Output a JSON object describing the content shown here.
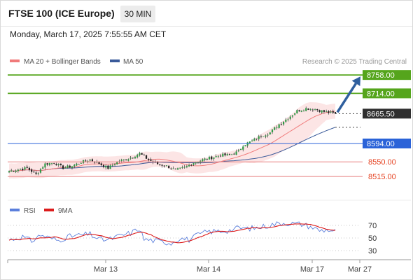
{
  "header": {
    "instrument": "FTSE 100 (ICE Europe)",
    "interval": "30 MIN",
    "datetime": "Monday, March 17, 2025 7:55:55 AM CET"
  },
  "colors": {
    "up": "#2e9c46",
    "down": "#222222",
    "ma20": "#f07a7a",
    "bollinger_fill": "#fbdcdc",
    "ma50": "#3a5a9a",
    "resistance": "#55a51c",
    "support_blue": "#2b63d8",
    "support_red": "#e88080",
    "current": "#2f2f2f",
    "arrow": "#2f5f9e",
    "rsi": "#5b7fdc",
    "rsi_ma": "#dc1c1c"
  },
  "chart_data": [
    {
      "type": "candlestick",
      "legend": [
        "MA 20 + Bollinger Bands",
        "MA 50"
      ],
      "credit": "Research © 2025 Trading Central",
      "x_ticks": [
        "Mar 13",
        "Mar 14",
        "Mar 17",
        "Mar 27"
      ],
      "ylim": [
        8480,
        8775
      ],
      "levels": [
        {
          "label": "8758.00",
          "value": 8758,
          "kind": "resistance"
        },
        {
          "label": "8714.00",
          "value": 8714,
          "kind": "resistance"
        },
        {
          "label": "8665.50",
          "value": 8665.5,
          "kind": "current"
        },
        {
          "label": "8594.00",
          "value": 8594,
          "kind": "support_blue"
        },
        {
          "label": "8550.00",
          "value": 8550,
          "kind": "support_red"
        },
        {
          "label": "8515.00",
          "value": 8515,
          "kind": "support_red"
        }
      ],
      "close_waypoints": [
        [
          0,
          8528
        ],
        [
          8,
          8535
        ],
        [
          12,
          8520
        ],
        [
          16,
          8545
        ],
        [
          20,
          8548
        ],
        [
          24,
          8536
        ],
        [
          28,
          8540
        ],
        [
          32,
          8549
        ],
        [
          36,
          8555
        ],
        [
          40,
          8546
        ],
        [
          44,
          8535
        ],
        [
          48,
          8550
        ],
        [
          54,
          8560
        ],
        [
          58,
          8570
        ],
        [
          62,
          8555
        ],
        [
          66,
          8545
        ],
        [
          70,
          8540
        ],
        [
          74,
          8530
        ],
        [
          78,
          8536
        ],
        [
          82,
          8548
        ],
        [
          86,
          8555
        ],
        [
          90,
          8560
        ],
        [
          94,
          8566
        ],
        [
          98,
          8566
        ],
        [
          102,
          8575
        ],
        [
          104,
          8590
        ],
        [
          108,
          8600
        ],
        [
          112,
          8612
        ],
        [
          116,
          8620
        ],
        [
          120,
          8640
        ],
        [
          124,
          8655
        ],
        [
          128,
          8672
        ],
        [
          132,
          8678
        ],
        [
          136,
          8676
        ],
        [
          140,
          8670
        ],
        [
          145,
          8665.5
        ]
      ]
    },
    {
      "type": "line",
      "legend": [
        "RSI",
        "9MA"
      ],
      "ylim": [
        20,
        80
      ],
      "y_ticks": [
        "70",
        "50",
        "30"
      ],
      "rsi_waypoints": [
        [
          0,
          47
        ],
        [
          6,
          52
        ],
        [
          10,
          45
        ],
        [
          14,
          55
        ],
        [
          18,
          50
        ],
        [
          22,
          46
        ],
        [
          26,
          52
        ],
        [
          30,
          54
        ],
        [
          36,
          56
        ],
        [
          40,
          48
        ],
        [
          44,
          47
        ],
        [
          48,
          52
        ],
        [
          54,
          58
        ],
        [
          58,
          65
        ],
        [
          60,
          48
        ],
        [
          64,
          46
        ],
        [
          68,
          44
        ],
        [
          72,
          42
        ],
        [
          76,
          50
        ],
        [
          80,
          47
        ],
        [
          84,
          55
        ],
        [
          88,
          60
        ],
        [
          94,
          61
        ],
        [
          98,
          62
        ],
        [
          102,
          66
        ],
        [
          106,
          65
        ],
        [
          110,
          66
        ],
        [
          114,
          69
        ],
        [
          118,
          72
        ],
        [
          122,
          74
        ],
        [
          126,
          73
        ],
        [
          130,
          72
        ],
        [
          134,
          68
        ],
        [
          138,
          62
        ],
        [
          142,
          63
        ],
        [
          145,
          61
        ]
      ]
    }
  ]
}
